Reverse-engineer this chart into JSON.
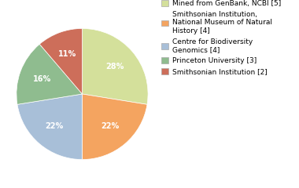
{
  "legend_labels": [
    "Mined from GenBank, NCBI [5]",
    "Smithsonian Institution,\nNational Museum of Natural\nHistory [4]",
    "Centre for Biodiversity\nGenomics [4]",
    "Princeton University [3]",
    "Smithsonian Institution [2]"
  ],
  "values": [
    27,
    22,
    22,
    16,
    11
  ],
  "colors": [
    "#d4e09b",
    "#f4a460",
    "#a8bfd8",
    "#8fbc8f",
    "#cd6e5a"
  ],
  "startangle": 90,
  "background_color": "#ffffff",
  "pct_fontsize": 7,
  "legend_fontsize": 6.5
}
